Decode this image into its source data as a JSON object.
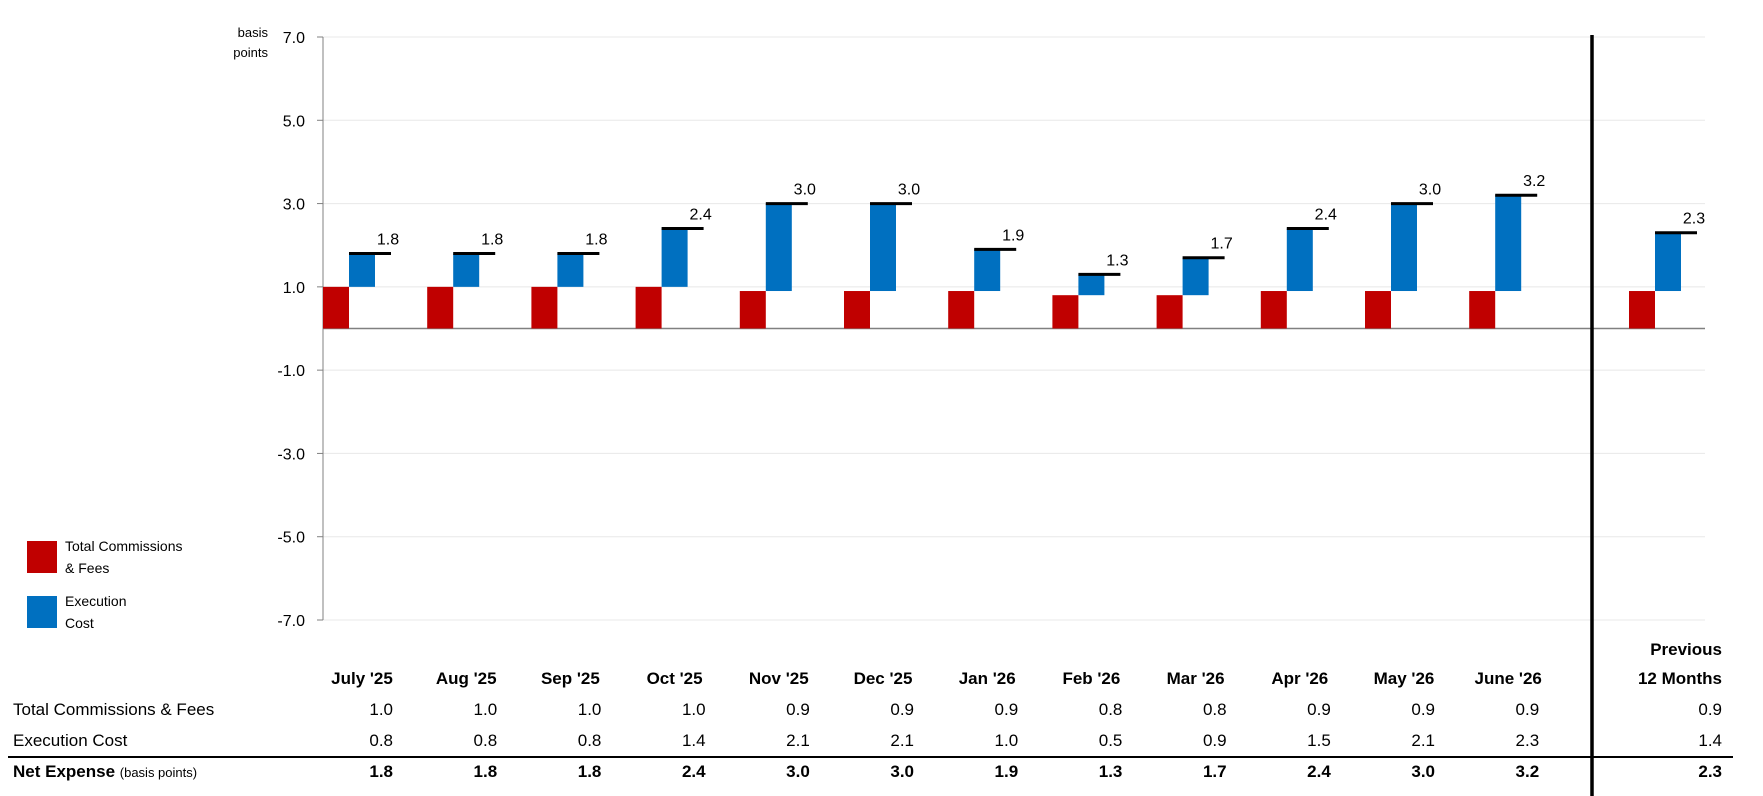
{
  "chart_data": {
    "type": "bar",
    "title": "",
    "ylabel": "basis points",
    "ylim": [
      -7.0,
      7.0
    ],
    "yticks": [
      "7.0",
      "5.0",
      "3.0",
      "1.0",
      "-1.0",
      "-3.0",
      "-5.0",
      "-7.0"
    ],
    "grid": true,
    "legend_position": "left",
    "categories": [
      "July '25",
      "Aug '25",
      "Sep '25",
      "Oct '25",
      "Nov '25",
      "Dec '25",
      "Jan '26",
      "Feb '26",
      "Mar '26",
      "Apr '26",
      "May '26",
      "June '26"
    ],
    "summary_label_line1": "Previous",
    "summary_label_line2": "12 Months",
    "series": [
      {
        "name": "Total Commissions & Fees",
        "legend_line1": "Total Commissions",
        "legend_line2": "& Fees",
        "color": "#C00000",
        "values": [
          1.0,
          1.0,
          1.0,
          1.0,
          0.9,
          0.9,
          0.9,
          0.8,
          0.8,
          0.9,
          0.9,
          0.9
        ],
        "summary": 0.9
      },
      {
        "name": "Execution Cost",
        "legend_line1": "Execution",
        "legend_line2": "Cost",
        "color": "#0070C0",
        "values": [
          0.8,
          0.8,
          0.8,
          1.4,
          2.1,
          2.1,
          1.0,
          0.5,
          0.9,
          1.5,
          2.1,
          2.3
        ],
        "summary": 1.4
      }
    ],
    "net_expense": {
      "label": "Net Expense",
      "label_suffix": "(basis points)",
      "values": [
        1.8,
        1.8,
        1.8,
        2.4,
        3.0,
        3.0,
        1.9,
        1.3,
        1.7,
        2.4,
        3.0,
        3.2
      ],
      "summary": 2.3
    }
  },
  "table": {
    "rows": [
      {
        "label": "Total Commissions & Fees",
        "cells": [
          "1.0",
          "1.0",
          "1.0",
          "1.0",
          "0.9",
          "0.9",
          "0.9",
          "0.8",
          "0.8",
          "0.9",
          "0.9",
          "0.9"
        ],
        "summary": "0.9"
      },
      {
        "label": "Execution Cost",
        "cells": [
          "0.8",
          "0.8",
          "0.8",
          "1.4",
          "2.1",
          "2.1",
          "1.0",
          "0.5",
          "0.9",
          "1.5",
          "2.1",
          "2.3"
        ],
        "summary": "1.4"
      }
    ],
    "net": {
      "label": "Net Expense",
      "suffix": "(basis points)",
      "cells": [
        "1.8",
        "1.8",
        "1.8",
        "2.4",
        "3.0",
        "3.0",
        "1.9",
        "1.3",
        "1.7",
        "2.4",
        "3.0",
        "3.2"
      ],
      "summary": "2.3"
    }
  }
}
